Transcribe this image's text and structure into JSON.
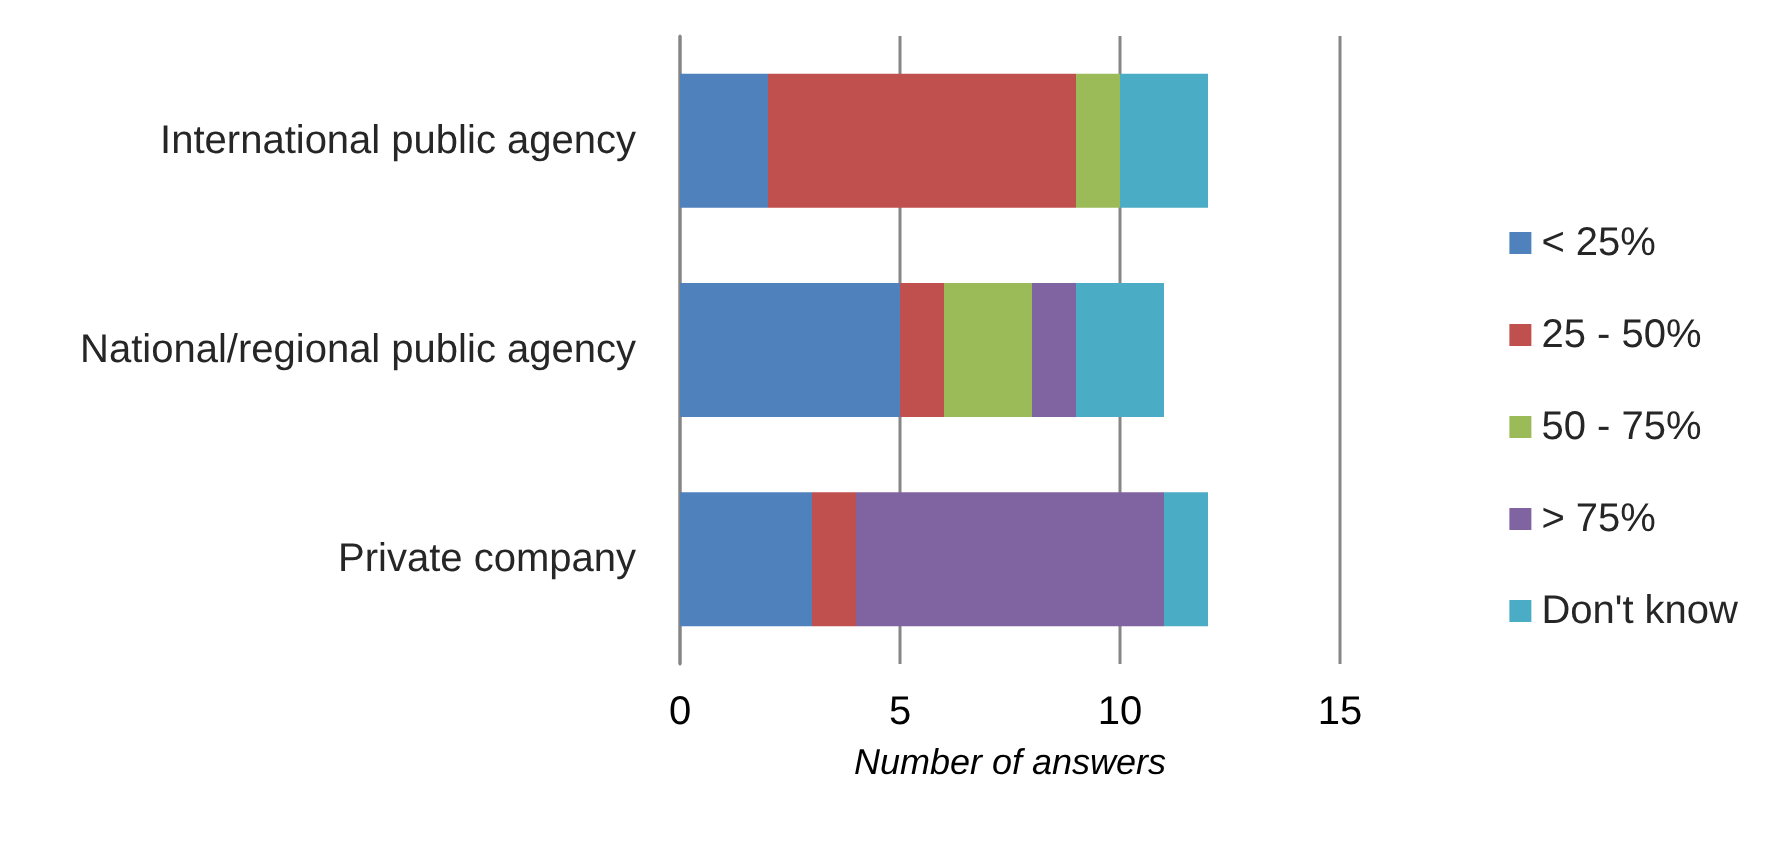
{
  "chart_data": {
    "type": "bar",
    "orientation": "horizontal",
    "stacked": true,
    "categories": [
      "International public agency",
      "National/regional public agency",
      "Private company"
    ],
    "series": [
      {
        "name": "< 25%",
        "color": "#4f81bd",
        "values": [
          2,
          5,
          3
        ]
      },
      {
        "name": "25 - 50%",
        "color": "#c0504d",
        "values": [
          7,
          1,
          1
        ]
      },
      {
        "name": "50 - 75%",
        "color": "#9bbb59",
        "values": [
          1,
          2,
          0
        ]
      },
      {
        "name": "> 75%",
        "color": "#8064a2",
        "values": [
          0,
          1,
          7
        ]
      },
      {
        "name": "Don't know",
        "color": "#4bacc6",
        "values": [
          2,
          2,
          1
        ]
      }
    ],
    "xlim": [
      0,
      15
    ],
    "xticks": [
      0,
      5,
      10,
      15
    ],
    "xlabel": "Number of answers",
    "grid": "x",
    "legend": "right"
  }
}
